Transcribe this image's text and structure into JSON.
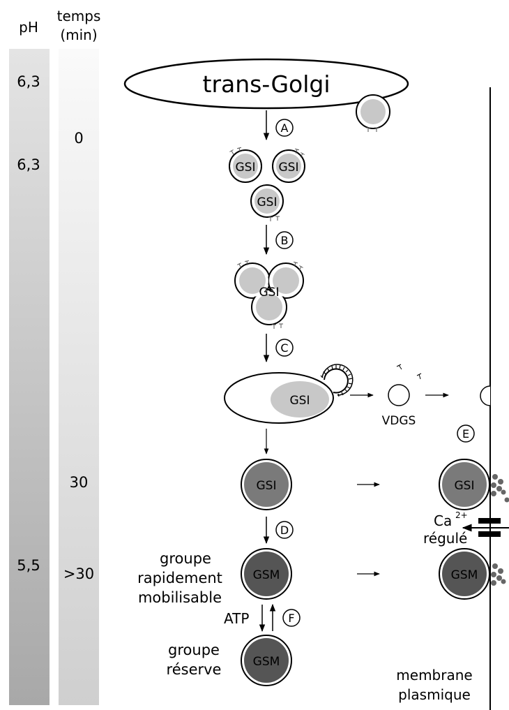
{
  "columns": {
    "ph_header": "pH",
    "time_header_line1": "temps",
    "time_header_line2": "(min)"
  },
  "ph_values": [
    "6,3",
    "6,3",
    "5,5"
  ],
  "time_values": [
    "0",
    "30",
    ">30"
  ],
  "golgi_label": "trans-Golgi",
  "steps": [
    "A",
    "B",
    "C",
    "D",
    "E",
    "F"
  ],
  "vesicles": {
    "gsi": "GSI",
    "gsm": "GSM",
    "vdgs": "VDGS"
  },
  "labels": {
    "calcium": "Ca",
    "calcium_charge": "2+",
    "regulated": "régulé",
    "atp": "ATP",
    "rapid_pool_line1": "groupe",
    "rapid_pool_line2": "rapidement",
    "rapid_pool_line3": "mobilisable",
    "reserve_pool_line1": "groupe",
    "reserve_pool_line2": "réserve",
    "membrane_line1": "membrane",
    "membrane_line2": "plasmique"
  },
  "colors": {
    "light_granule": "#c8c8c8",
    "medium_granule": "#7a7a7a",
    "dark_granule": "#555555",
    "ph_bar_top": "#e4e4e4",
    "ph_bar_bottom": "#a8a8a8",
    "time_bar_top": "#fafafa",
    "time_bar_bottom": "#cfcfcf"
  }
}
